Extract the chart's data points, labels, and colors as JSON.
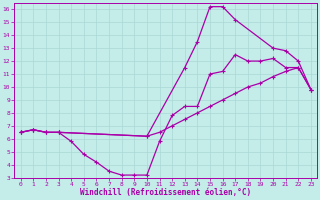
{
  "xlabel": "Windchill (Refroidissement éolien,°C)",
  "bg_color": "#c4ece8",
  "grid_color": "#aad8d4",
  "line_color": "#aa00aa",
  "xlim": [
    -0.5,
    23.5
  ],
  "ylim": [
    3,
    16.5
  ],
  "xticks": [
    0,
    1,
    2,
    3,
    4,
    5,
    6,
    7,
    8,
    9,
    10,
    11,
    12,
    13,
    14,
    15,
    16,
    17,
    18,
    19,
    20,
    21,
    22,
    23
  ],
  "yticks": [
    3,
    4,
    5,
    6,
    7,
    8,
    9,
    10,
    11,
    12,
    13,
    14,
    15,
    16
  ],
  "line_dip_x": [
    0,
    1,
    2,
    3,
    4,
    5,
    6,
    7,
    8,
    9,
    10,
    11,
    12,
    13,
    14,
    15,
    16,
    17,
    18,
    19,
    20,
    21,
    22,
    23
  ],
  "line_dip_y": [
    6.5,
    6.7,
    6.5,
    6.5,
    5.8,
    4.8,
    4.2,
    3.5,
    3.2,
    3.2,
    3.2,
    5.8,
    7.8,
    8.5,
    8.5,
    11.0,
    11.2,
    12.5,
    12.0,
    12.0,
    12.2,
    11.5,
    11.5,
    9.8
  ],
  "line_diag_x": [
    0,
    1,
    2,
    3,
    10,
    11,
    12,
    13,
    14,
    15,
    16,
    17,
    18,
    19,
    20,
    21,
    22,
    23
  ],
  "line_diag_y": [
    6.5,
    6.7,
    6.5,
    6.5,
    6.2,
    6.5,
    7.0,
    7.5,
    8.0,
    8.5,
    9.0,
    9.5,
    10.0,
    10.3,
    10.8,
    11.2,
    11.5,
    9.8
  ],
  "line_peak_x": [
    0,
    1,
    2,
    3,
    10,
    13,
    14,
    15,
    16,
    17,
    20,
    21,
    22,
    23
  ],
  "line_peak_y": [
    6.5,
    6.7,
    6.5,
    6.5,
    6.2,
    11.5,
    13.5,
    16.2,
    16.2,
    15.2,
    13.0,
    12.8,
    12.0,
    9.8
  ]
}
